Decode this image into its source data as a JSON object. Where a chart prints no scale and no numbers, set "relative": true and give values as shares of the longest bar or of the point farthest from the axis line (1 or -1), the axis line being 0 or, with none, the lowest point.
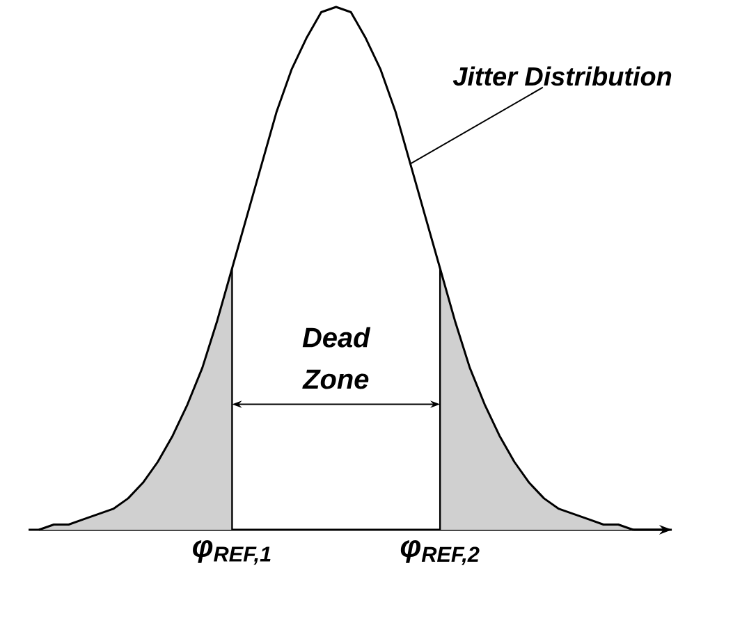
{
  "chart_data": {
    "type": "line",
    "relative": true,
    "marker": "none",
    "line_style": "solid",
    "categories": [
      null,
      null,
      null,
      null,
      null,
      null,
      null,
      null,
      null,
      null,
      null,
      null,
      null,
      "φ$_{REF,1}$",
      null,
      null,
      null,
      null,
      null,
      null,
      null,
      null,
      null,
      null,
      null,
      null,
      null,
      "φ$_{REF,2}$",
      null,
      null,
      null,
      null,
      null,
      null,
      null,
      null,
      null,
      null,
      null,
      null,
      null
    ],
    "series": [
      {
        "type": "area",
        "color": "#d0d0d0",
        "values": [
          0,
          0.01,
          0.01,
          0.02,
          0.03,
          0.04,
          0.06,
          0.09,
          0.13,
          0.18,
          0.24,
          0.31,
          0.4,
          0.5,
          null,
          null,
          null,
          null,
          null,
          null,
          null,
          null,
          null,
          null,
          null,
          null,
          null,
          null,
          null,
          null,
          null,
          null,
          null,
          null,
          null,
          null,
          null,
          null,
          null,
          null,
          null
        ]
      },
      {
        "type": "area",
        "color": "#d0d0d0",
        "values": [
          null,
          null,
          null,
          null,
          null,
          null,
          null,
          null,
          null,
          null,
          null,
          null,
          null,
          null,
          null,
          null,
          null,
          null,
          null,
          null,
          null,
          null,
          null,
          null,
          null,
          null,
          null,
          0.5,
          0.4,
          0.31,
          0.24,
          0.18,
          0.13,
          0.09,
          0.06,
          0.04,
          0.03,
          0.02,
          0.01,
          0.01,
          0
        ]
      },
      {
        "color": "#000000",
        "values": [
          0,
          0.01,
          0.01,
          0.02,
          0.03,
          0.04,
          0.06,
          0.09,
          0.13,
          0.18,
          0.24,
          0.31,
          0.4,
          0.5,
          0.6,
          0.7,
          0.8,
          0.88,
          0.94,
          0.99,
          1,
          0.99,
          0.94,
          0.88,
          0.8,
          0.7,
          0.6,
          0.5,
          0.4,
          0.31,
          0.24,
          0.18,
          0.13,
          0.09,
          0.06,
          0.04,
          0.03,
          0.02,
          0.01,
          0.01,
          0
        ]
      }
    ],
    "ref_lines": [
      {
        "axis": "x",
        "value": "φ$_{REF,1}$",
        "color": "#000000"
      },
      {
        "axis": "x",
        "value": "φ$_{REF,2}$",
        "color": "#000000"
      }
    ],
    "annotations": [
      "Dead Zone",
      "Jitter Distribution"
    ]
  }
}
